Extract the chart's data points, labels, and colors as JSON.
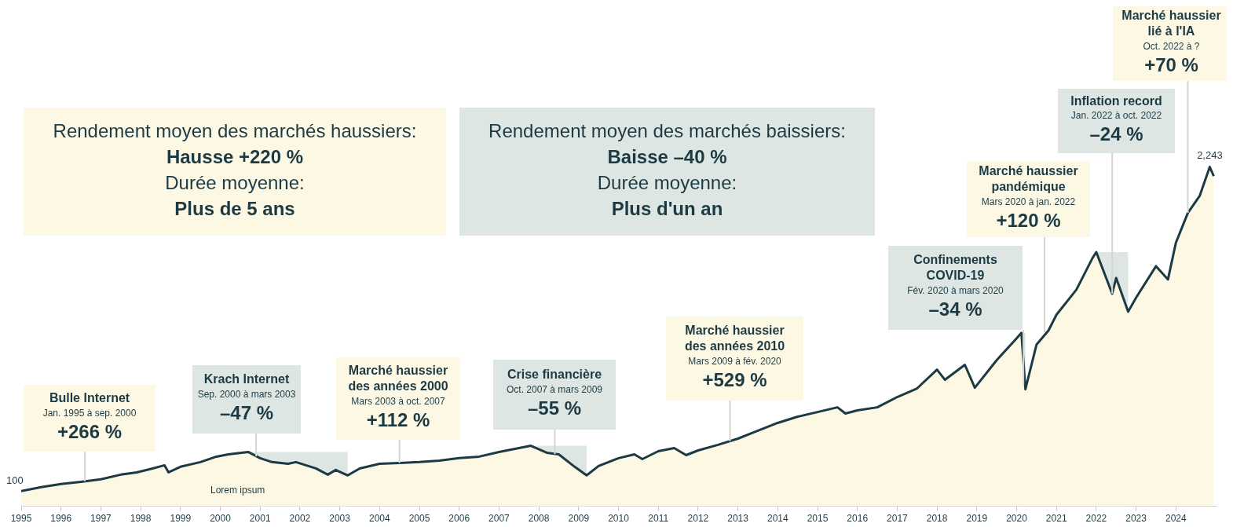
{
  "chart_data": {
    "type": "area",
    "x": [
      1995.0,
      1995.5,
      1996.0,
      1996.5,
      1997.0,
      1997.5,
      1997.9,
      1998.3,
      1998.6,
      1998.7,
      1999.0,
      1999.5,
      1999.9,
      2000.2,
      2000.7,
      2001.0,
      2001.3,
      2001.7,
      2001.9,
      2002.4,
      2002.7,
      2002.9,
      2003.2,
      2003.5,
      2004.0,
      2004.5,
      2005.0,
      2005.5,
      2006.0,
      2006.5,
      2007.0,
      2007.5,
      2007.8,
      2008.2,
      2008.5,
      2008.9,
      2009.2,
      2009.5,
      2010.0,
      2010.4,
      2010.6,
      2011.0,
      2011.4,
      2011.7,
      2012.0,
      2012.5,
      2013.0,
      2013.5,
      2014.0,
      2014.5,
      2015.0,
      2015.5,
      2015.7,
      2016.0,
      2016.5,
      2017.0,
      2017.5,
      2018.0,
      2018.2,
      2018.7,
      2018.95,
      2019.5,
      2020.0,
      2020.12,
      2020.22,
      2020.5,
      2020.8,
      2021.0,
      2021.5,
      2021.9,
      2022.0,
      2022.4,
      2022.5,
      2022.8,
      2023.0,
      2023.5,
      2023.8,
      2024.0,
      2024.3,
      2024.6,
      2024.85,
      2024.95
    ],
    "series": [
      {
        "color": "#1c3a44",
        "values": [
          100,
          126,
          147,
          162,
          178,
          209,
          224,
          250,
          271,
          224,
          261,
          292,
          328,
          343,
          359,
          318,
          292,
          281,
          292,
          250,
          209,
          240,
          204,
          250,
          281,
          286,
          292,
          302,
          318,
          328,
          359,
          385,
          400,
          354,
          343,
          261,
          204,
          266,
          318,
          343,
          312,
          364,
          385,
          338,
          369,
          406,
          447,
          499,
          551,
          592,
          623,
          654,
          613,
          634,
          654,
          722,
          779,
          903,
          836,
          935,
          784,
          966,
          1110,
          1146,
          773,
          1069,
          1162,
          1266,
          1431,
          1638,
          1680,
          1405,
          1509,
          1286,
          1379,
          1587,
          1499,
          1742,
          1939,
          2053,
          2243,
          2182
        ],
        "value_labels": [
          "100",
          null,
          null,
          null,
          null,
          null,
          null,
          null,
          null,
          null,
          null,
          null,
          null,
          null,
          null,
          null,
          null,
          null,
          null,
          null,
          null,
          null,
          null,
          null,
          null,
          null,
          null,
          null,
          null,
          null,
          null,
          null,
          null,
          null,
          null,
          null,
          null,
          null,
          null,
          null,
          null,
          null,
          null,
          null,
          null,
          null,
          null,
          null,
          null,
          null,
          null,
          null,
          null,
          null,
          null,
          null,
          null,
          null,
          null,
          null,
          null,
          null,
          null,
          null,
          null,
          null,
          null,
          null,
          null,
          null,
          null,
          null,
          null,
          null,
          null,
          null,
          null,
          null,
          null,
          null,
          "2,243",
          null
        ]
      }
    ],
    "xlim": [
      1995,
      2025
    ],
    "xticks": [
      1995,
      1996,
      1997,
      1998,
      1999,
      2000,
      2001,
      2002,
      2003,
      2004,
      2005,
      2006,
      2007,
      2008,
      2009,
      2010,
      2011,
      2012,
      2013,
      2014,
      2015,
      2016,
      2017,
      2018,
      2019,
      2020,
      2021,
      2022,
      2023,
      2024
    ],
    "tick_labels": "x",
    "bands": [
      {
        "axis": "x",
        "from": 2000.7,
        "to": 2003.2,
        "color": "#dde6e2"
      },
      {
        "axis": "x",
        "from": 2007.8,
        "to": 2009.2,
        "color": "#dde6e2"
      },
      {
        "axis": "x",
        "from": 2020.12,
        "to": 2020.22,
        "color": "#dde6e2"
      },
      {
        "axis": "x",
        "from": 2022.0,
        "to": 2022.8,
        "color": "#dde6e2"
      }
    ],
    "annotations": [
      "Rendement moyen des marchés haussiers:\nHausse +220 %\nDurée moyenne:\nPlus de 5 ans",
      "Rendement moyen des marchés baissiers:\nBaisse –40 %\nDurée moyenne:\nPlus d'un an",
      {
        "text": "Bulle Internet\nJan. 1995 à sep. 2000\n+266 %",
        "x": 1996.6,
        "y": 165
      },
      {
        "text": "Krach Internet\nSep. 2000 à mars 2003\n–47 %",
        "x": 2000.9,
        "y": 330
      },
      {
        "text": "Marché haussier\ndes années 2000\nMars 2003 à oct. 2007\n+112 %",
        "x": 2004.5,
        "y": 286
      },
      {
        "text": "Crise financière\nOct. 2007 à mars 2009\n–55 %",
        "x": 2008.4,
        "y": 345
      },
      {
        "text": "Marché haussier\ndes années 2010\nMars 2009 à fév. 2020\n+529 %",
        "x": 2012.8,
        "y": 430
      },
      {
        "text": "Confinements\nCOVID-19\nFév. 2020 à mars 2020\n–34 %",
        "x": 2020.17,
        "y": 800
      },
      {
        "text": "Marché haussier\npandémique\nMars 2020 à jan. 2022\n+120 %",
        "x": 2020.7,
        "y": 1150
      },
      {
        "text": "Inflation record\nJan. 2022 à oct. 2022\n–24 %",
        "x": 2022.4,
        "y": 1405
      },
      {
        "text": "Marché haussier\nlié à l'IA\nOct. 2022 à ?\n+70 %",
        "x": 2024.3,
        "y": 1939
      },
      "Lorem ipsum"
    ]
  }
}
